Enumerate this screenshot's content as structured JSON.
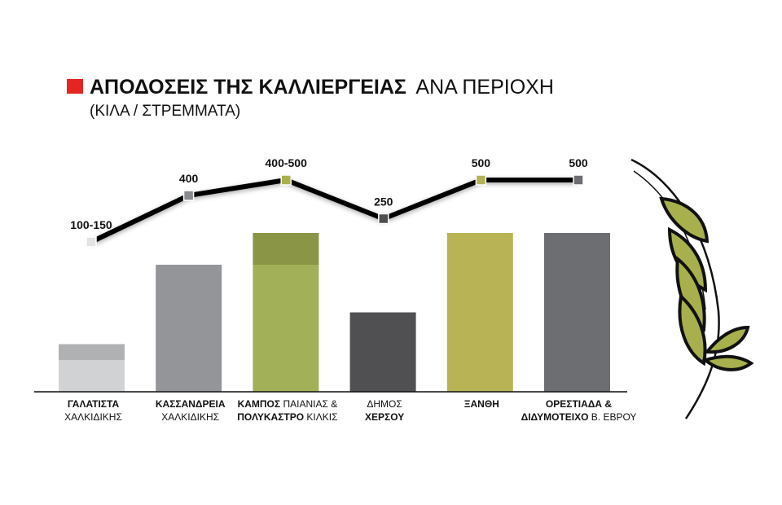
{
  "chart_data": {
    "type": "bar",
    "title_bold": "ΑΠΟΔΟΣΕΙΣ ΤΗΣ ΚΑΛΛΙΕΡΓΕΙΑΣ",
    "title_regular": "ΑΝΑ ΠΕΡΙΟΧΗ",
    "subtitle": "(ΚΙΛΑ / ΣΤΡΕΜΜΑΤΑ)",
    "accent_color": "#e52521",
    "ylim": [
      0,
      560
    ],
    "grid": false,
    "legend": "none",
    "categories": [
      {
        "lines": [
          {
            "bold": "ΓΑΛΑΤΙΣΤΑ",
            "regular": ""
          },
          {
            "bold": "",
            "regular": "ΧΑΛΚΙΔΙΚΗΣ"
          }
        ]
      },
      {
        "lines": [
          {
            "bold": "ΚΑΣΣΑΝΔΡΕΙΑ",
            "regular": ""
          },
          {
            "bold": "",
            "regular": "ΧΑΛΚΙΔΙΚΗΣ"
          }
        ]
      },
      {
        "lines": [
          {
            "bold": "ΚΑΜΠΟΣ ",
            "regular": "ΠΑΙΑΝΙΑΣ &"
          },
          {
            "bold": "ΠΟΛΥΚΑΣΤΡΟ ",
            "regular": "ΚΙΛΚΙΣ"
          }
        ]
      },
      {
        "lines": [
          {
            "bold": "",
            "regular": "ΔΗΜΟΣ"
          },
          {
            "bold": "ΧΕΡΣΟΥ",
            "regular": ""
          }
        ]
      },
      {
        "lines": [
          {
            "bold": "ΞΑΝΘΗ",
            "regular": ""
          }
        ]
      },
      {
        "lines": [
          {
            "bold": "ΟΡΕΣΤΙΑΔΑ &",
            "regular": ""
          },
          {
            "bold": "ΔΙΔΥΜΟΤΕΙΧΟ ",
            "regular": "Β. ΕΒΡΟΥ"
          }
        ]
      }
    ],
    "range_labels": [
      "100-150",
      "400",
      "400-500",
      "250",
      "500",
      "500"
    ],
    "series": [
      {
        "low": 100,
        "high": 150,
        "bar_color": "#d1d2d4",
        "top_color": "#b0b1b3",
        "marker_color": "#e3e3e3"
      },
      {
        "low": 400,
        "high": 400,
        "bar_color": "#939598",
        "top_color": "#939598",
        "marker_color": "#8a8b8e"
      },
      {
        "low": 400,
        "high": 500,
        "bar_color": "#a2b157",
        "top_color": "#8b9546",
        "marker_color": "#a7b04c"
      },
      {
        "low": 250,
        "high": 250,
        "bar_color": "#505052",
        "top_color": "#505052",
        "marker_color": "#4e4e50"
      },
      {
        "low": 500,
        "high": 500,
        "bar_color": "#b8b456",
        "top_color": "#b8b456",
        "marker_color": "#b3b25a"
      },
      {
        "low": 500,
        "high": 500,
        "bar_color": "#6d6e71",
        "top_color": "#6d6e71",
        "marker_color": "#6d6e71"
      }
    ],
    "line_values": [
      100,
      400,
      500,
      250,
      500,
      500
    ],
    "icons": [
      "wheat-stalk-icon"
    ]
  }
}
